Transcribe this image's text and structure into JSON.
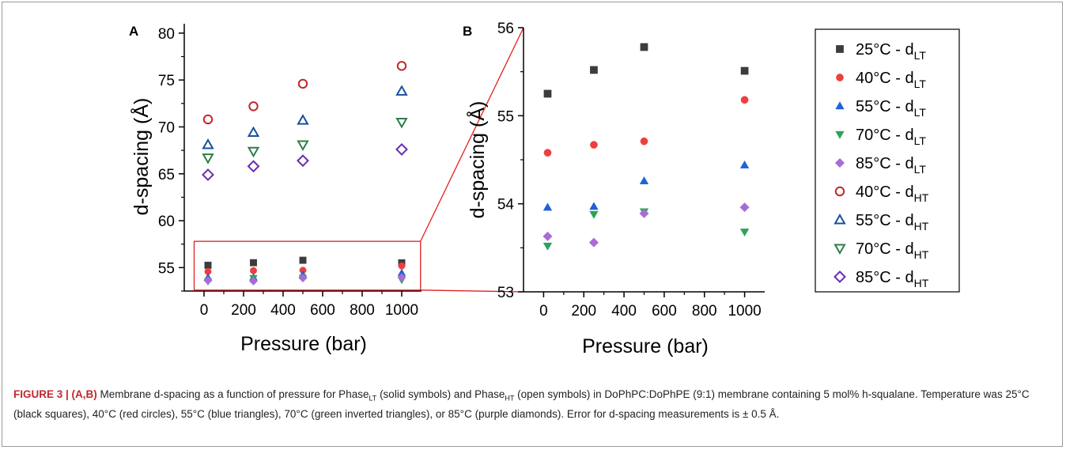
{
  "figure": {
    "caption": {
      "label": "FIGURE 3 | (A,B)",
      "segments": [
        {
          "text": " Membrane d-spacing as a function of pressure for Phase"
        },
        {
          "text": "LT",
          "sub": true
        },
        {
          "text": " (solid symbols) and Phase"
        },
        {
          "text": "HT",
          "sub": true
        },
        {
          "text": " (open symbols) in DoPhPC:DoPhPE (9:1) membrane containing 5 mol% h-squalane. Temperature was 25°C (black squares), 40°C (red circles), 55°C (blue triangles), 70°C (green inverted triangles), or 85°C (purple diamonds). Error for d-spacing measurements is ± 0.5 Å."
        }
      ]
    },
    "legend": [
      {
        "prefix": "25°C - d",
        "sub": "LT",
        "series": "25C-LT"
      },
      {
        "prefix": "40°C - d",
        "sub": "LT",
        "series": "40C-LT"
      },
      {
        "prefix": "55°C - d",
        "sub": "LT",
        "series": "55C-LT"
      },
      {
        "prefix": "70°C - d",
        "sub": "LT",
        "series": "70C-LT"
      },
      {
        "prefix": "85°C - d",
        "sub": "LT",
        "series": "85C-LT"
      },
      {
        "prefix": "40°C - d",
        "sub": "HT",
        "series": "40C-HT"
      },
      {
        "prefix": "55°C - d",
        "sub": "HT",
        "series": "55C-HT"
      },
      {
        "prefix": "70°C - d",
        "sub": "HT",
        "series": "70C-HT"
      },
      {
        "prefix": "85°C - d",
        "sub": "HT",
        "series": "85C-HT"
      }
    ],
    "colors": {
      "black": "#3c3c3c",
      "red": "#ef3e3e",
      "blue": "#1e63d6",
      "green": "#2fa25a",
      "purple": "#a96bd8",
      "red_open": "#c0262c",
      "blue_open": "#1a4f9e",
      "green_open": "#2e7d4a",
      "purple_open": "#6a2db0",
      "zoom_box": "#e02020"
    }
  },
  "chart_data": [
    {
      "panel": "A",
      "type": "scatter",
      "xlabel": "Pressure (bar)",
      "ylabel": "d-spacing (Å)",
      "xlim": [
        -100,
        1100
      ],
      "ylim": [
        52.5,
        81
      ],
      "xticks": [
        0,
        200,
        400,
        600,
        800,
        1000
      ],
      "yticks": [
        55,
        60,
        65,
        70,
        75,
        80
      ],
      "x": [
        20,
        250,
        500,
        1000
      ],
      "zoom_region": {
        "x": [
          -50,
          1095
        ],
        "y": [
          52.6,
          57.8
        ]
      },
      "series": [
        {
          "id": "25C-LT",
          "marker": "square",
          "filled": true,
          "color": "black",
          "values": [
            55.25,
            55.52,
            55.78,
            55.51
          ]
        },
        {
          "id": "40C-LT",
          "marker": "circle",
          "filled": true,
          "color": "red",
          "values": [
            54.58,
            54.67,
            54.71,
            55.18
          ]
        },
        {
          "id": "55C-LT",
          "marker": "triangle",
          "filled": true,
          "color": "blue",
          "values": [
            53.96,
            53.97,
            54.26,
            54.44
          ]
        },
        {
          "id": "70C-LT",
          "marker": "triangle-down",
          "filled": true,
          "color": "green",
          "values": [
            53.52,
            53.88,
            53.91,
            53.68
          ]
        },
        {
          "id": "85C-LT",
          "marker": "diamond",
          "filled": true,
          "color": "purple",
          "values": [
            53.63,
            53.56,
            53.89,
            53.96
          ]
        },
        {
          "id": "40C-HT",
          "marker": "circle",
          "filled": false,
          "color": "red_open",
          "values": [
            70.8,
            72.2,
            74.6,
            76.5
          ]
        },
        {
          "id": "55C-HT",
          "marker": "triangle",
          "filled": false,
          "color": "blue_open",
          "values": [
            68.1,
            69.4,
            70.7,
            73.8
          ]
        },
        {
          "id": "70C-HT",
          "marker": "triangle-down",
          "filled": false,
          "color": "green_open",
          "values": [
            66.7,
            67.4,
            68.1,
            70.5
          ]
        },
        {
          "id": "85C-HT",
          "marker": "diamond",
          "filled": false,
          "color": "purple_open",
          "values": [
            64.9,
            65.8,
            66.4,
            67.6
          ]
        }
      ]
    },
    {
      "panel": "B",
      "type": "scatter",
      "xlabel": "Pressure (bar)",
      "ylabel": "d-spacing (Å)",
      "xlim": [
        -100,
        1100
      ],
      "ylim": [
        53,
        56
      ],
      "xticks": [
        0,
        200,
        400,
        600,
        800,
        1000
      ],
      "yticks": [
        53,
        54,
        55,
        56
      ],
      "x": [
        20,
        250,
        500,
        1000
      ],
      "series": [
        {
          "id": "25C-LT",
          "marker": "square",
          "filled": true,
          "color": "black",
          "values": [
            55.25,
            55.52,
            55.78,
            55.51
          ]
        },
        {
          "id": "40C-LT",
          "marker": "circle",
          "filled": true,
          "color": "red",
          "values": [
            54.58,
            54.67,
            54.71,
            55.18
          ]
        },
        {
          "id": "55C-LT",
          "marker": "triangle",
          "filled": true,
          "color": "blue",
          "values": [
            53.96,
            53.97,
            54.26,
            54.44
          ]
        },
        {
          "id": "70C-LT",
          "marker": "triangle-down",
          "filled": true,
          "color": "green",
          "values": [
            53.52,
            53.88,
            53.91,
            53.68
          ]
        },
        {
          "id": "85C-LT",
          "marker": "diamond",
          "filled": true,
          "color": "purple",
          "values": [
            53.63,
            53.56,
            53.89,
            53.96
          ]
        }
      ]
    }
  ]
}
